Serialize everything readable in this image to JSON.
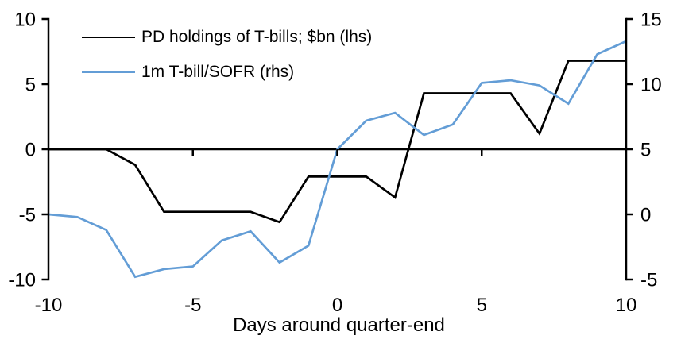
{
  "figure": {
    "background": "#ffffff",
    "text_color": "#000000",
    "axis_color": "#000000"
  },
  "chart_data": {
    "type": "line",
    "title": "",
    "xlabel": "Days around quarter-end",
    "ylabel_left": "",
    "ylabel_right": "",
    "grid": false,
    "legend_position": "top-left",
    "x": [
      -10,
      -9,
      -8,
      -7,
      -6,
      -5,
      -4,
      -3,
      -2,
      -1,
      0,
      1,
      2,
      3,
      4,
      5,
      6,
      7,
      8,
      9,
      10
    ],
    "axes": {
      "x": {
        "range": [
          -10,
          10
        ],
        "ticks": [
          -10,
          -5,
          0,
          5,
          10
        ],
        "tick_labels": [
          "-10",
          "-5",
          "0",
          "5",
          "10"
        ]
      },
      "left": {
        "range": [
          -10,
          10
        ],
        "ticks": [
          10,
          5,
          0,
          -5,
          -10
        ],
        "tick_labels": [
          "10",
          "5",
          "0",
          "-5",
          "-10"
        ]
      },
      "right": {
        "range": [
          -5,
          15
        ],
        "ticks": [
          15,
          10,
          5,
          0,
          -5
        ],
        "tick_labels": [
          "15",
          "10",
          "5",
          "0",
          "-5"
        ]
      }
    },
    "series": [
      {
        "name": "pd-holdings",
        "label": "PD holdings of T-bills; $bn (lhs)",
        "axis": "left",
        "color": "#000000",
        "values": [
          0,
          0,
          0,
          -1.2,
          -4.8,
          -4.8,
          -4.8,
          -4.8,
          -5.6,
          -2.1,
          -2.1,
          -2.1,
          -3.7,
          4.3,
          4.3,
          4.3,
          4.3,
          1.2,
          6.8,
          6.8,
          6.8
        ]
      },
      {
        "name": "tbill-sofr",
        "label": "1m T-bill/SOFR (rhs)",
        "axis": "right",
        "color": "#639DD6",
        "values": [
          0,
          -0.2,
          -1.2,
          -4.8,
          -4.2,
          -4.0,
          -2.0,
          -1.3,
          -3.7,
          -2.4,
          5.0,
          7.2,
          7.8,
          6.1,
          6.9,
          10.1,
          10.3,
          9.9,
          8.5,
          12.3,
          13.3
        ]
      }
    ]
  }
}
